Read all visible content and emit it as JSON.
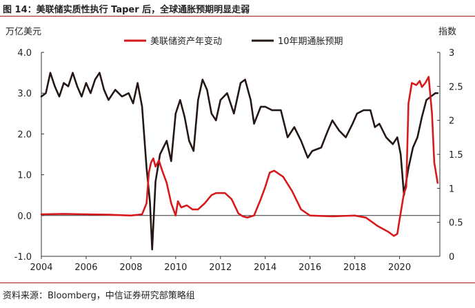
{
  "header": {
    "title": "图 14：美联储实质性执行 Taper 后，全球通胀预期明显走弱"
  },
  "footer": {
    "source": "资料来源：Bloomberg，中信证券研究部策略组"
  },
  "chart_data": {
    "type": "line",
    "dual_axis": true,
    "left_axis": {
      "label": "万亿美元",
      "ylim": [
        -1.0,
        4.0
      ],
      "ticks": [
        "-1.0",
        "0.0",
        "1.0",
        "2.0",
        "3.0",
        "4.0"
      ]
    },
    "right_axis": {
      "label": "指数",
      "ylim": [
        0,
        3
      ],
      "ticks": [
        "0",
        "0.5",
        "1",
        "1.5",
        "2",
        "2.5",
        "3"
      ]
    },
    "xlim": [
      2004,
      2021.8
    ],
    "x_ticks": [
      "2004",
      "2006",
      "2008",
      "2010",
      "2012",
      "2014",
      "2016",
      "2018",
      "2020"
    ],
    "grid": false,
    "legend_position": "top-center",
    "colors": {
      "fed_balance": "#d7191c",
      "breakeven": "#231815",
      "axis": "#333333",
      "header_rule": "#a01b1b"
    },
    "series": [
      {
        "name": "美联储资产年变动",
        "axis": "left",
        "points": [
          [
            2004.0,
            0.03
          ],
          [
            2005.0,
            0.04
          ],
          [
            2006.0,
            0.03
          ],
          [
            2007.0,
            0.02
          ],
          [
            2008.0,
            0.0
          ],
          [
            2008.5,
            0.03
          ],
          [
            2008.7,
            0.3
          ],
          [
            2008.8,
            1.05
          ],
          [
            2008.9,
            1.3
          ],
          [
            2009.0,
            1.4
          ],
          [
            2009.1,
            1.2
          ],
          [
            2009.25,
            1.35
          ],
          [
            2009.4,
            1.1
          ],
          [
            2009.6,
            0.8
          ],
          [
            2009.8,
            0.3
          ],
          [
            2010.0,
            0.0
          ],
          [
            2010.1,
            0.35
          ],
          [
            2010.25,
            0.2
          ],
          [
            2010.5,
            0.25
          ],
          [
            2010.75,
            0.15
          ],
          [
            2011.0,
            0.15
          ],
          [
            2011.3,
            0.3
          ],
          [
            2011.6,
            0.5
          ],
          [
            2011.8,
            0.55
          ],
          [
            2012.2,
            0.55
          ],
          [
            2012.5,
            0.4
          ],
          [
            2012.8,
            0.05
          ],
          [
            2013.0,
            -0.02
          ],
          [
            2013.2,
            -0.05
          ],
          [
            2013.5,
            0.0
          ],
          [
            2013.8,
            0.4
          ],
          [
            2014.0,
            0.7
          ],
          [
            2014.2,
            1.05
          ],
          [
            2014.4,
            1.1
          ],
          [
            2014.8,
            0.95
          ],
          [
            2015.2,
            0.6
          ],
          [
            2015.6,
            0.15
          ],
          [
            2016.0,
            0.0
          ],
          [
            2017.0,
            -0.02
          ],
          [
            2018.0,
            0.0
          ],
          [
            2018.5,
            -0.05
          ],
          [
            2019.0,
            -0.25
          ],
          [
            2019.5,
            -0.4
          ],
          [
            2019.75,
            -0.5
          ],
          [
            2019.9,
            -0.45
          ],
          [
            2020.0,
            -0.1
          ],
          [
            2020.2,
            0.55
          ],
          [
            2020.3,
            0.7
          ],
          [
            2020.4,
            2.75
          ],
          [
            2020.55,
            3.25
          ],
          [
            2020.75,
            3.2
          ],
          [
            2020.9,
            3.3
          ],
          [
            2021.0,
            3.15
          ],
          [
            2021.15,
            3.25
          ],
          [
            2021.3,
            3.4
          ],
          [
            2021.45,
            2.5
          ],
          [
            2021.55,
            1.3
          ],
          [
            2021.7,
            0.8
          ]
        ]
      },
      {
        "name": "10年期通胀预期",
        "axis": "right",
        "points": [
          [
            2004.0,
            2.35
          ],
          [
            2004.2,
            2.4
          ],
          [
            2004.4,
            2.7
          ],
          [
            2004.6,
            2.5
          ],
          [
            2004.8,
            2.35
          ],
          [
            2005.0,
            2.55
          ],
          [
            2005.2,
            2.5
          ],
          [
            2005.4,
            2.7
          ],
          [
            2005.6,
            2.5
          ],
          [
            2005.8,
            2.35
          ],
          [
            2006.0,
            2.55
          ],
          [
            2006.2,
            2.4
          ],
          [
            2006.4,
            2.6
          ],
          [
            2006.6,
            2.7
          ],
          [
            2006.8,
            2.45
          ],
          [
            2007.0,
            2.3
          ],
          [
            2007.3,
            2.45
          ],
          [
            2007.6,
            2.35
          ],
          [
            2007.9,
            2.4
          ],
          [
            2008.1,
            2.25
          ],
          [
            2008.3,
            2.55
          ],
          [
            2008.5,
            2.2
          ],
          [
            2008.7,
            1.3
          ],
          [
            2008.85,
            0.8
          ],
          [
            2008.95,
            0.1
          ],
          [
            2009.1,
            1.1
          ],
          [
            2009.3,
            1.5
          ],
          [
            2009.6,
            1.7
          ],
          [
            2009.8,
            1.4
          ],
          [
            2010.0,
            2.1
          ],
          [
            2010.2,
            2.3
          ],
          [
            2010.4,
            2.05
          ],
          [
            2010.6,
            1.7
          ],
          [
            2010.8,
            1.55
          ],
          [
            2011.0,
            2.3
          ],
          [
            2011.2,
            2.6
          ],
          [
            2011.4,
            2.45
          ],
          [
            2011.6,
            2.1
          ],
          [
            2011.8,
            2.0
          ],
          [
            2012.0,
            2.3
          ],
          [
            2012.3,
            2.4
          ],
          [
            2012.6,
            2.1
          ],
          [
            2012.9,
            2.55
          ],
          [
            2013.1,
            2.6
          ],
          [
            2013.35,
            2.3
          ],
          [
            2013.5,
            1.95
          ],
          [
            2013.8,
            2.2
          ],
          [
            2014.0,
            2.2
          ],
          [
            2014.3,
            2.15
          ],
          [
            2014.7,
            2.15
          ],
          [
            2015.0,
            1.75
          ],
          [
            2015.3,
            1.9
          ],
          [
            2015.6,
            1.7
          ],
          [
            2015.9,
            1.45
          ],
          [
            2016.1,
            1.55
          ],
          [
            2016.5,
            1.6
          ],
          [
            2016.8,
            1.85
          ],
          [
            2017.0,
            2.0
          ],
          [
            2017.3,
            1.85
          ],
          [
            2017.6,
            1.75
          ],
          [
            2017.9,
            1.95
          ],
          [
            2018.1,
            2.1
          ],
          [
            2018.4,
            2.15
          ],
          [
            2018.7,
            2.15
          ],
          [
            2018.9,
            1.9
          ],
          [
            2019.1,
            1.95
          ],
          [
            2019.4,
            1.75
          ],
          [
            2019.7,
            1.65
          ],
          [
            2019.9,
            1.75
          ],
          [
            2020.05,
            1.5
          ],
          [
            2020.2,
            0.9
          ],
          [
            2020.4,
            1.3
          ],
          [
            2020.6,
            1.6
          ],
          [
            2020.8,
            1.75
          ],
          [
            2021.0,
            2.05
          ],
          [
            2021.2,
            2.3
          ],
          [
            2021.4,
            2.35
          ],
          [
            2021.6,
            2.4
          ],
          [
            2021.7,
            2.4
          ]
        ]
      }
    ]
  }
}
